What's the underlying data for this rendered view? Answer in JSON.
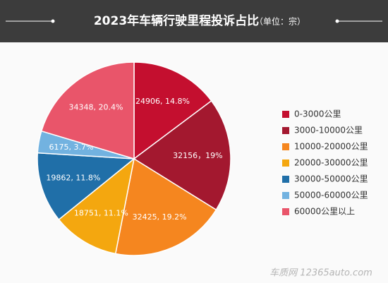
{
  "chart_data": {
    "type": "pie",
    "title": "2023年车辆行驶里程投诉占比",
    "subtitle": "（单位：宗）",
    "categories": [
      "0-3000公里",
      "3000-10000公里",
      "10000-20000公里",
      "20000-30000公里",
      "30000-50000公里",
      "50000-60000公里",
      "60000公里以上"
    ],
    "values": [
      24906,
      32156,
      32425,
      18751,
      19862,
      6175,
      34348
    ],
    "value_labels": [
      "24906, 14.8%",
      "32156，19%",
      "32425, 19.2%",
      "18751, 11.1%",
      "19862, 11.8%",
      "6175, 3.7%",
      "34348, 20.4%"
    ],
    "colors": [
      "#c40f2f",
      "#a3182f",
      "#f5861f",
      "#f4a70f",
      "#206fa8",
      "#72b2e0",
      "#e9556a"
    ],
    "legend": "right",
    "watermark": "车质网 12365auto.com"
  }
}
